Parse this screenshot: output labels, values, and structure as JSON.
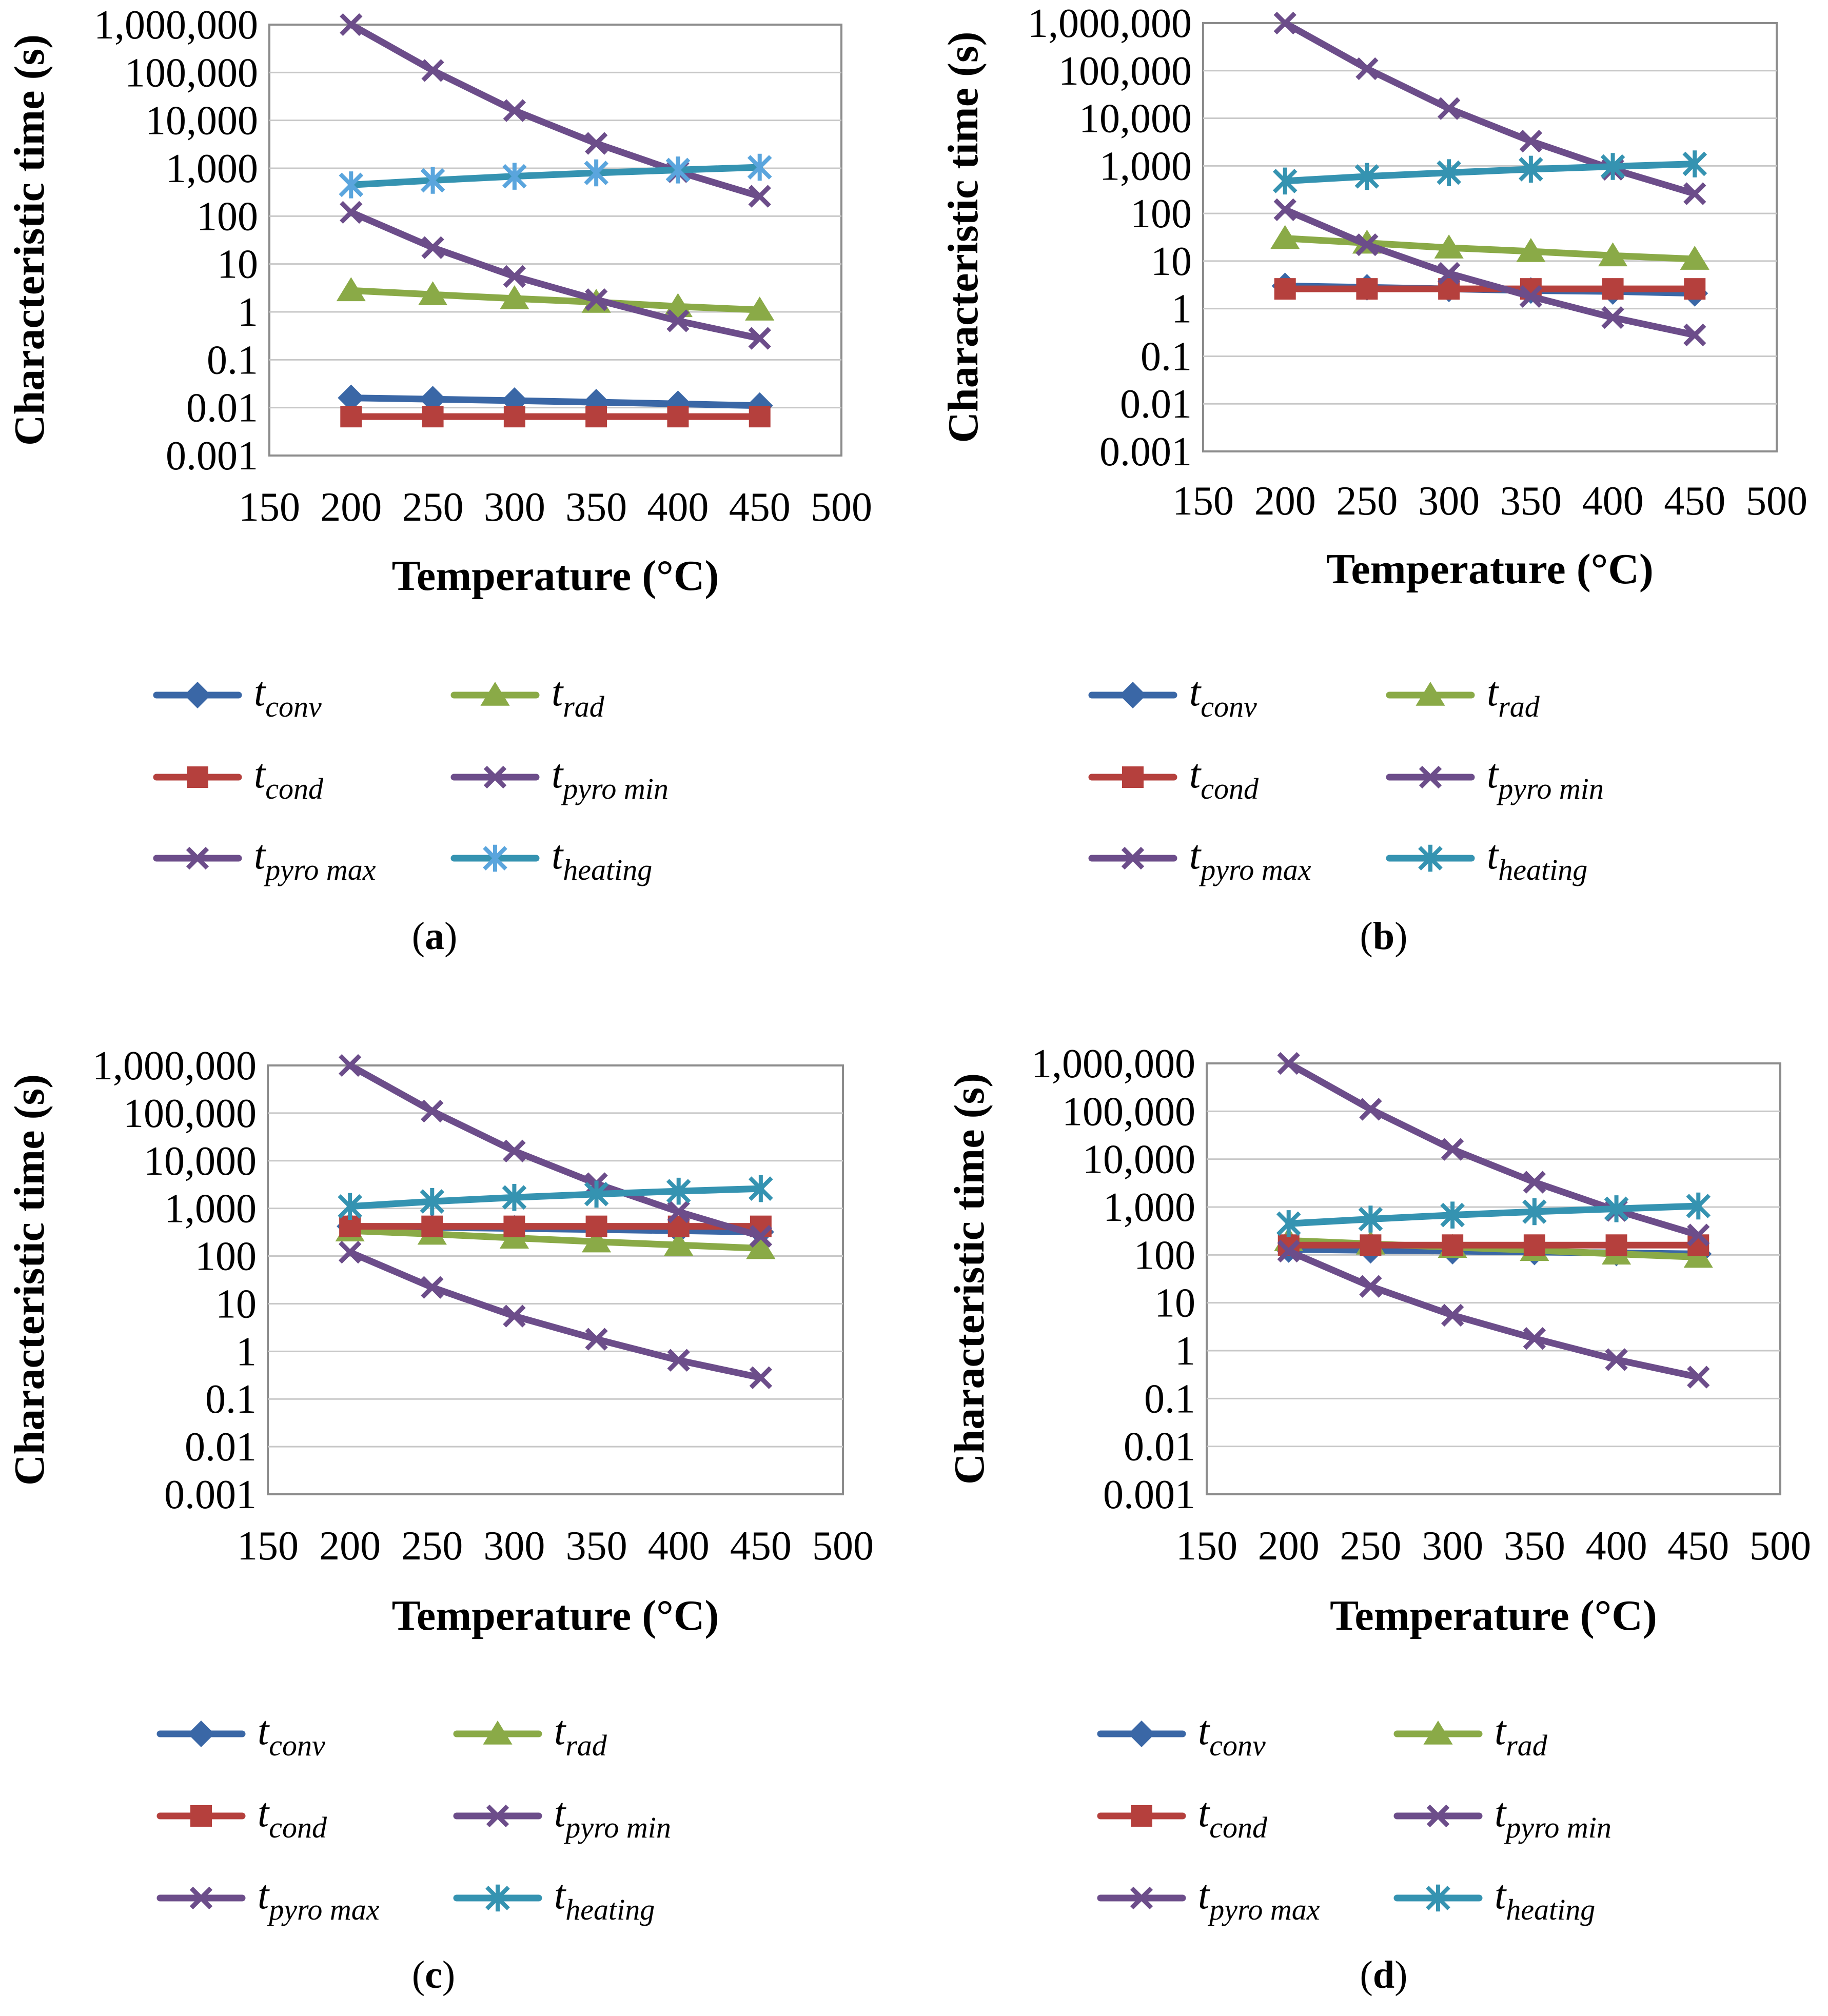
{
  "styles": {
    "t_conv": {
      "color": "#3a67a6",
      "marker": "diamond",
      "legend_main": "t",
      "legend_sub": "conv"
    },
    "t_rad": {
      "color": "#8aaa47",
      "marker": "triangle",
      "legend_main": "t",
      "legend_sub": "rad"
    },
    "t_cond": {
      "color": "#b5403d",
      "marker": "square",
      "legend_main": "t",
      "legend_sub": "cond"
    },
    "t_pyro_min": {
      "color": "#6c4d8a",
      "marker": "x",
      "legend_main": "t",
      "legend_sub": "pyro min"
    },
    "t_pyro_max": {
      "color": "#6c4d8a",
      "marker": "x",
      "legend_main": "t",
      "legend_sub": "pyro max"
    },
    "t_heating": {
      "color": "#3593b1",
      "marker": "star",
      "legend_main": "t",
      "legend_sub": "heating",
      "marker_color_a": "#5aa5dd"
    }
  },
  "chart_data": [
    {
      "type": "line",
      "label_open": "(",
      "label_letter": "a",
      "label_close": ")",
      "xlabel": "Temperature (°C)",
      "ylabel": "Characteristic time (s)",
      "yscale": "log",
      "xlim": [
        150,
        500
      ],
      "ylim": [
        0.001,
        1000000
      ],
      "xticks": [
        "150",
        "200",
        "250",
        "300",
        "350",
        "400",
        "450",
        "500"
      ],
      "yticks": [
        "0.001",
        "0.01",
        "0.1",
        "1",
        "10",
        "100",
        "1,000",
        "10,000",
        "100,000",
        "1,000,000"
      ],
      "x": [
        200,
        250,
        300,
        350,
        400,
        450
      ],
      "series": [
        {
          "key": "t_conv",
          "values": [
            0.016,
            0.015,
            0.014,
            0.013,
            0.012,
            0.011
          ]
        },
        {
          "key": "t_rad",
          "values": [
            2.8,
            2.3,
            1.9,
            1.6,
            1.3,
            1.1
          ]
        },
        {
          "key": "t_cond",
          "values": [
            0.0065,
            0.0065,
            0.0065,
            0.0065,
            0.0065,
            0.0065
          ]
        },
        {
          "key": "t_pyro_min",
          "values": [
            120,
            22,
            5.5,
            1.8,
            0.65,
            0.28
          ]
        },
        {
          "key": "t_pyro_max",
          "values": [
            1000000,
            110000,
            16000,
            3300,
            850,
            260
          ]
        },
        {
          "key": "t_heating",
          "values": [
            450,
            560,
            680,
            800,
            920,
            1050
          ]
        }
      ],
      "legend": [
        [
          "t_conv",
          "t_rad"
        ],
        [
          "t_cond",
          "t_pyro_min"
        ],
        [
          "t_pyro_max",
          "t_heating"
        ]
      ]
    },
    {
      "type": "line",
      "label_open": "(",
      "label_letter": "b",
      "label_close": ")",
      "xlabel": "Temperature (°C)",
      "ylabel": "Characteristic time (s)",
      "yscale": "log",
      "xlim": [
        150,
        500
      ],
      "ylim": [
        0.001,
        1000000
      ],
      "xticks": [
        "150",
        "200",
        "250",
        "300",
        "350",
        "400",
        "450",
        "500"
      ],
      "yticks": [
        "0.001",
        "0.01",
        "0.1",
        "1",
        "10",
        "100",
        "1,000",
        "10,000",
        "100,000",
        "1,000,000"
      ],
      "x": [
        200,
        250,
        300,
        350,
        400,
        450
      ],
      "series": [
        {
          "key": "t_conv",
          "values": [
            3.0,
            2.8,
            2.6,
            2.4,
            2.3,
            2.1
          ]
        },
        {
          "key": "t_rad",
          "values": [
            30,
            24,
            19,
            16,
            13,
            11
          ]
        },
        {
          "key": "t_cond",
          "values": [
            2.6,
            2.6,
            2.6,
            2.6,
            2.6,
            2.6
          ]
        },
        {
          "key": "t_pyro_min",
          "values": [
            120,
            22,
            5.5,
            1.8,
            0.65,
            0.28
          ]
        },
        {
          "key": "t_pyro_max",
          "values": [
            1000000,
            110000,
            16000,
            3300,
            850,
            260
          ]
        },
        {
          "key": "t_heating",
          "values": [
            480,
            600,
            720,
            850,
            970,
            1100
          ]
        }
      ],
      "legend": [
        [
          "t_conv",
          "t_rad"
        ],
        [
          "t_cond",
          "t_pyro_min"
        ],
        [
          "t_pyro_max",
          "t_heating"
        ]
      ]
    },
    {
      "type": "line",
      "label_open": "(",
      "label_letter": "c",
      "label_close": ")",
      "xlabel": "Temperature (°C)",
      "ylabel": "Characteristic time (s)",
      "yscale": "log",
      "xlim": [
        150,
        500
      ],
      "ylim": [
        0.001,
        1000000
      ],
      "xticks": [
        "150",
        "200",
        "250",
        "300",
        "350",
        "400",
        "450",
        "500"
      ],
      "yticks": [
        "0.001",
        "0.01",
        "0.1",
        "1",
        "10",
        "100",
        "1,000",
        "10,000",
        "100,000",
        "1,000,000"
      ],
      "x": [
        200,
        250,
        300,
        350,
        400,
        450
      ],
      "series": [
        {
          "key": "t_conv",
          "values": [
            420,
            400,
            380,
            360,
            340,
            320
          ]
        },
        {
          "key": "t_rad",
          "values": [
            340,
            290,
            240,
            200,
            170,
            145
          ]
        },
        {
          "key": "t_cond",
          "values": [
            420,
            420,
            420,
            420,
            420,
            420
          ]
        },
        {
          "key": "t_pyro_min",
          "values": [
            120,
            22,
            5.5,
            1.8,
            0.65,
            0.28
          ]
        },
        {
          "key": "t_pyro_max",
          "values": [
            1000000,
            110000,
            16000,
            3300,
            850,
            260
          ]
        },
        {
          "key": "t_heating",
          "values": [
            1100,
            1400,
            1700,
            2000,
            2300,
            2600
          ]
        }
      ],
      "legend": [
        [
          "t_conv",
          "t_rad"
        ],
        [
          "t_cond",
          "t_pyro_min"
        ],
        [
          "t_pyro_max",
          "t_heating"
        ]
      ]
    },
    {
      "type": "line",
      "label_open": "(",
      "label_letter": "d",
      "label_close": ")",
      "xlabel": "Temperature (°C)",
      "ylabel": "Characteristic time (s)",
      "yscale": "log",
      "xlim": [
        150,
        500
      ],
      "ylim": [
        0.001,
        1000000
      ],
      "xticks": [
        "150",
        "200",
        "250",
        "300",
        "350",
        "400",
        "450",
        "500"
      ],
      "yticks": [
        "0.001",
        "0.01",
        "0.1",
        "1",
        "10",
        "100",
        "1,000",
        "10,000",
        "100,000",
        "1,000,000"
      ],
      "x": [
        200,
        250,
        300,
        350,
        400,
        450
      ],
      "series": [
        {
          "key": "t_conv",
          "values": [
            130,
            125,
            120,
            115,
            110,
            105
          ]
        },
        {
          "key": "t_rad",
          "values": [
            200,
            170,
            145,
            125,
            105,
            90
          ]
        },
        {
          "key": "t_cond",
          "values": [
            160,
            160,
            160,
            160,
            160,
            160
          ]
        },
        {
          "key": "t_pyro_min",
          "values": [
            120,
            22,
            5.5,
            1.8,
            0.65,
            0.28
          ]
        },
        {
          "key": "t_pyro_max",
          "values": [
            1000000,
            110000,
            16000,
            3300,
            850,
            260
          ]
        },
        {
          "key": "t_heating",
          "values": [
            450,
            560,
            680,
            800,
            920,
            1050
          ]
        }
      ],
      "legend": [
        [
          "t_conv",
          "t_rad"
        ],
        [
          "t_cond",
          "t_pyro_min"
        ],
        [
          "t_pyro_max",
          "t_heating"
        ]
      ]
    }
  ]
}
